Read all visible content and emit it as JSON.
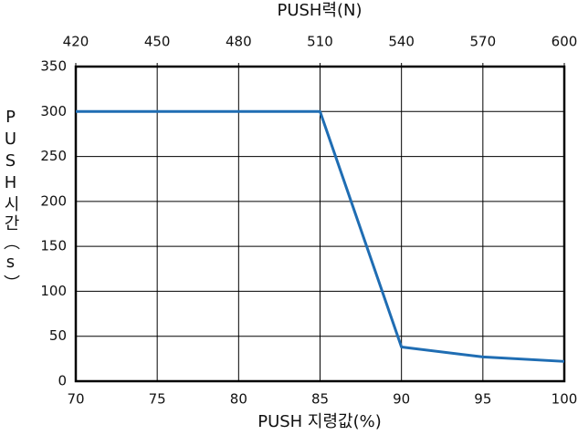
{
  "chart_data": {
    "type": "line",
    "x2label": "PUSH력(N)",
    "xlabel": "PUSH 지령값(%)",
    "ylabel": "PUSH시간（s）",
    "x": [
      70,
      85,
      90,
      95,
      100
    ],
    "series": [
      {
        "color": "#1f6db3",
        "values": [
          300,
          300,
          38,
          27,
          22
        ]
      }
    ],
    "xlim": [
      70,
      100
    ],
    "xticks": [
      70,
      75,
      80,
      85,
      90,
      95,
      100
    ],
    "x2lim": [
      420,
      600
    ],
    "x2ticks": [
      420,
      450,
      480,
      510,
      540,
      570,
      600
    ],
    "ylim": [
      0,
      350
    ],
    "yticks": [
      0,
      50,
      100,
      150,
      200,
      250,
      300,
      350
    ],
    "grid": true
  }
}
